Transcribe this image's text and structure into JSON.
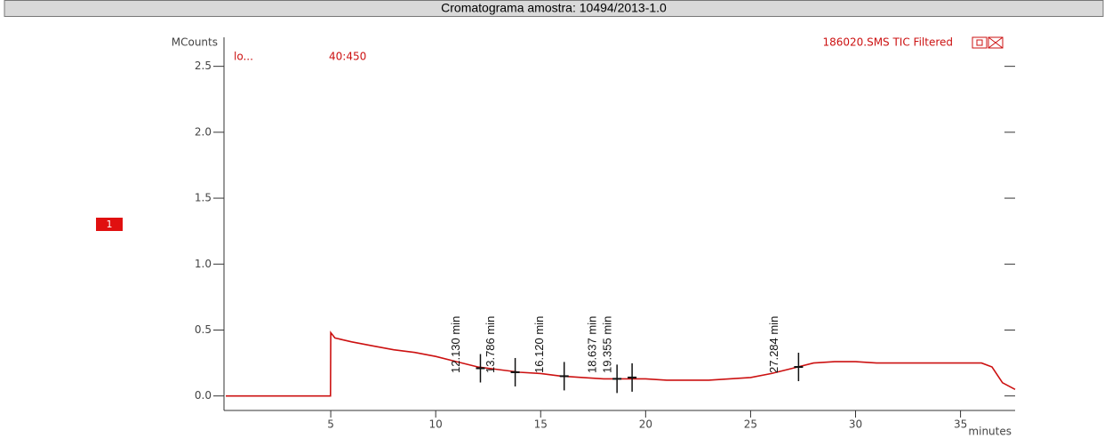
{
  "chart_data": {
    "type": "line",
    "title": "Cromatograma amostra: 10494/2013-1.0",
    "y_label": "MCounts",
    "x_label": "minutes",
    "scan_label": "lo...",
    "mass_range": "40:450",
    "badge": "1",
    "x": [
      0,
      4.99,
      5,
      5.2,
      6,
      7,
      8,
      9,
      10,
      11,
      12,
      13,
      14,
      15,
      16,
      17,
      18,
      19,
      20,
      21,
      22,
      23,
      24,
      25,
      26,
      27,
      28,
      29,
      30,
      31,
      32,
      33,
      34,
      35,
      36,
      36.5,
      37,
      37.6
    ],
    "series": [
      {
        "name": "186020.SMS TIC Filtered",
        "color": "#cc1111",
        "values": [
          0,
          0,
          0.48,
          0.44,
          0.41,
          0.38,
          0.35,
          0.33,
          0.3,
          0.26,
          0.22,
          0.2,
          0.18,
          0.17,
          0.15,
          0.14,
          0.13,
          0.13,
          0.13,
          0.12,
          0.12,
          0.12,
          0.13,
          0.14,
          0.17,
          0.21,
          0.25,
          0.26,
          0.26,
          0.25,
          0.25,
          0.25,
          0.25,
          0.25,
          0.25,
          0.22,
          0.1,
          0.05
        ]
      }
    ],
    "annotations": [
      {
        "label": "12.130 min",
        "x": 12.13,
        "y": 0.21
      },
      {
        "label": "13.786 min",
        "x": 13.786,
        "y": 0.18
      },
      {
        "label": "16.120 min",
        "x": 16.12,
        "y": 0.15
      },
      {
        "label": "18.637 min",
        "x": 18.637,
        "y": 0.13
      },
      {
        "label": "19.355 min",
        "x": 19.355,
        "y": 0.14
      },
      {
        "label": "27.284 min",
        "x": 27.284,
        "y": 0.22
      }
    ],
    "xlim": [
      0,
      37.6
    ],
    "ylim": [
      -0.11,
      2.72
    ],
    "xticks": [
      5,
      10,
      15,
      20,
      25,
      30,
      35
    ],
    "yticks": [
      {
        "value": 0,
        "label": "0.0"
      },
      0.5,
      {
        "value": 1,
        "label": "1.0"
      },
      1.5,
      {
        "value": 2,
        "label": "2.0"
      },
      2.5
    ]
  }
}
